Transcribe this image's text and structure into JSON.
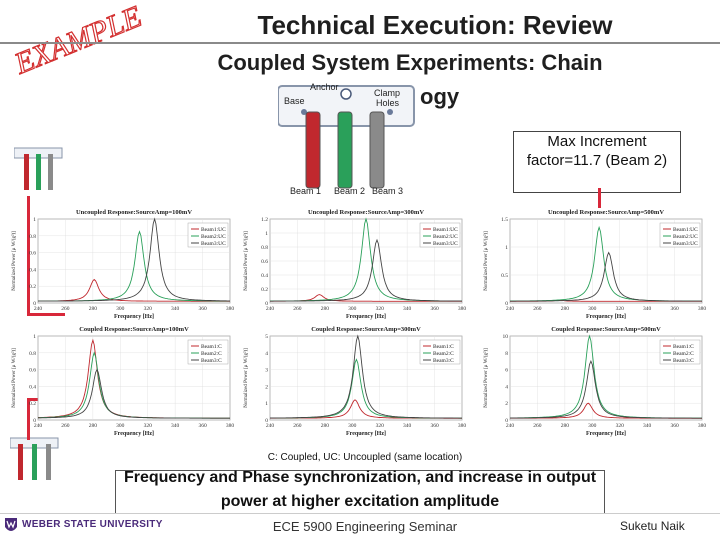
{
  "stamp": {
    "text": "EXAMPLE",
    "color": "#d33030"
  },
  "title": {
    "line1": "Technical Execution: Review",
    "line2": "Coupled System Experiments: Chain",
    "line3": "ogy"
  },
  "diagram": {
    "base": "Base",
    "anchor": "Anchor",
    "clamp": "Clamp",
    "holes": "Holes",
    "beam1": "Beam 1",
    "beam2": "Beam 2",
    "beam3": "Beam 3",
    "colors": {
      "beam1": "#c0282e",
      "beam2": "#2aa05a",
      "beam3": "#7a7a7a"
    }
  },
  "callout": {
    "text": "Max Increment factor=11.7 (Beam 2)"
  },
  "chart_data": [
    {
      "type": "line",
      "title": "Uncoupled Response:SourceAmp=100mV",
      "xlabel": "Frequency [Hz]",
      "ylabel": "Normalized Power [μ W/(g²)]",
      "xlim": [
        240,
        380
      ],
      "ylim": [
        0,
        1
      ],
      "xticks": [
        "240",
        "260",
        "280",
        "300",
        "320",
        "340",
        "360",
        "380"
      ],
      "yticks": [
        "0",
        "0.2",
        "0.4",
        "0.6",
        "0.8",
        "1"
      ],
      "legend": [
        "Beam1:UC",
        "Beam2:UC",
        "Beam3:UC"
      ],
      "series": [
        {
          "name": "Beam1:UC",
          "color": "#c0282e",
          "peak_x": 281,
          "peak_y": 0.28
        },
        {
          "name": "Beam2:UC",
          "color": "#2aa05a",
          "peak_x": 314,
          "peak_y": 0.85
        },
        {
          "name": "Beam3:UC",
          "color": "#444444",
          "peak_x": 325,
          "peak_y": 1.0
        }
      ]
    },
    {
      "type": "line",
      "title": "Uncoupled Response:SourceAmp=300mV",
      "xlabel": "Frequency [Hz]",
      "ylabel": "Normalized Power [μ W/(g²)]",
      "xlim": [
        240,
        380
      ],
      "ylim": [
        0,
        1.2
      ],
      "xticks": [
        "240",
        "260",
        "280",
        "300",
        "320",
        "340",
        "360",
        "380"
      ],
      "yticks": [
        "0",
        "0.2",
        "0.4",
        "0.6",
        "0.8",
        "1",
        "1.2"
      ],
      "legend": [
        "Beam1:UC",
        "Beam2:UC",
        "Beam3:UC"
      ],
      "series": [
        {
          "name": "Beam1:UC",
          "color": "#c0282e",
          "peak_x": 276,
          "peak_y": 0.12
        },
        {
          "name": "Beam2:UC",
          "color": "#2aa05a",
          "peak_x": 310,
          "peak_y": 1.2
        },
        {
          "name": "Beam3:UC",
          "color": "#444444",
          "peak_x": 318,
          "peak_y": 0.9
        }
      ]
    },
    {
      "type": "line",
      "title": "Uncoupled Response:SourceAmp=500mV",
      "xlabel": "Frequency [Hz]",
      "ylabel": "Normalized Power [μ W/(g²)]",
      "xlim": [
        240,
        380
      ],
      "ylim": [
        0,
        1.5
      ],
      "xticks": [
        "240",
        "260",
        "280",
        "300",
        "320",
        "340",
        "360",
        "380"
      ],
      "yticks": [
        "0",
        "0.5",
        "1",
        "1.5"
      ],
      "legend": [
        "Beam1:UC",
        "Beam2:UC",
        "Beam3:UC"
      ],
      "series": [
        {
          "name": "Beam1:UC",
          "color": "#c0282e",
          "peak_x": 276,
          "peak_y": 0.05
        },
        {
          "name": "Beam2:UC",
          "color": "#2aa05a",
          "peak_x": 305,
          "peak_y": 1.35
        },
        {
          "name": "Beam3:UC",
          "color": "#444444",
          "peak_x": 312,
          "peak_y": 0.9
        }
      ]
    },
    {
      "type": "line",
      "title": "Coupled Response:SourceAmp=100mV",
      "xlabel": "Frequency [Hz]",
      "ylabel": "Normalized Power [μ W/(g²)]",
      "xlim": [
        240,
        380
      ],
      "ylim": [
        0,
        1
      ],
      "xticks": [
        "240",
        "260",
        "280",
        "300",
        "320",
        "340",
        "360",
        "380"
      ],
      "yticks": [
        "0",
        "0.2",
        "0.4",
        "0.6",
        "0.8",
        "1"
      ],
      "legend": [
        "Beam1:C",
        "Beam2:C",
        "Beam3:C"
      ],
      "series": [
        {
          "name": "Beam1:C",
          "color": "#c0282e",
          "peak_x": 280,
          "peak_y": 0.95
        },
        {
          "name": "Beam2:C",
          "color": "#2aa05a",
          "peak_x": 281,
          "peak_y": 0.8
        },
        {
          "name": "Beam3:C",
          "color": "#444444",
          "peak_x": 283,
          "peak_y": 0.6
        }
      ]
    },
    {
      "type": "line",
      "title": "Coupled Response:SourceAmp=300mV",
      "xlabel": "Frequency [Hz]",
      "ylabel": "Normalized Power [μ W/(g²)]",
      "xlim": [
        240,
        380
      ],
      "ylim": [
        0,
        5
      ],
      "xticks": [
        "240",
        "260",
        "280",
        "300",
        "320",
        "340",
        "360",
        "380"
      ],
      "yticks": [
        "0",
        "1",
        "2",
        "3",
        "4",
        "5"
      ],
      "legend": [
        "Beam1:C",
        "Beam2:C",
        "Beam3:C"
      ],
      "series": [
        {
          "name": "Beam1:C",
          "color": "#c0282e",
          "peak_x": 302,
          "peak_y": 1.2
        },
        {
          "name": "Beam2:C",
          "color": "#2aa05a",
          "peak_x": 303,
          "peak_y": 3.6
        },
        {
          "name": "Beam3:C",
          "color": "#444444",
          "peak_x": 304,
          "peak_y": 5.0
        }
      ]
    },
    {
      "type": "line",
      "title": "Coupled Response:SourceAmp=500mV",
      "xlabel": "Frequency [Hz]",
      "ylabel": "Normalized Power [μ W/(g²)]",
      "xlim": [
        240,
        380
      ],
      "ylim": [
        0,
        10
      ],
      "xticks": [
        "240",
        "260",
        "280",
        "300",
        "320",
        "340",
        "360",
        "380"
      ],
      "yticks": [
        "0",
        "2",
        "4",
        "6",
        "8",
        "10"
      ],
      "legend": [
        "Beam1:C",
        "Beam2:C",
        "Beam3:C"
      ],
      "series": [
        {
          "name": "Beam1:C",
          "color": "#c0282e",
          "peak_x": 297,
          "peak_y": 2.0
        },
        {
          "name": "Beam2:C",
          "color": "#2aa05a",
          "peak_x": 298,
          "peak_y": 10.0
        },
        {
          "name": "Beam3:C",
          "color": "#444444",
          "peak_x": 299,
          "peak_y": 7.0
        }
      ]
    }
  ],
  "note": "C: Coupled, UC: Uncoupled (same location)",
  "summary": "Frequency and Phase synchronization, and increase in output power at higher excitation amplitude",
  "footer": {
    "university": "WEBER STATE UNIVERSITY",
    "center": "ECE 5900 Engineering Seminar",
    "author": "Suketu Naik"
  }
}
